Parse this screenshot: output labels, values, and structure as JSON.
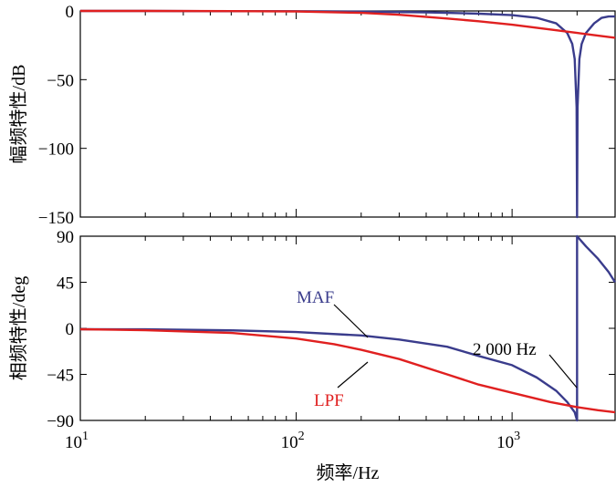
{
  "chart_data": [
    {
      "type": "line",
      "ylabel": "幅频特性/dB",
      "xscale": "log",
      "xlim": [
        10,
        3000
      ],
      "ylim": [
        -150,
        0
      ],
      "yticks": [
        "0",
        "−50",
        "−100",
        "−150"
      ],
      "ytick_values": [
        0,
        -50,
        -100,
        -150
      ],
      "series": [
        {
          "name": "MAF",
          "color": "#3a3c8c",
          "x": [
            10,
            20,
            50,
            100,
            200,
            400,
            700,
            1000,
            1300,
            1600,
            1800,
            1900,
            1950,
            1990,
            2000,
            2010,
            2050,
            2100,
            2200,
            2400,
            2600,
            2800,
            3000
          ],
          "y": [
            0,
            0,
            -0.2,
            -0.2,
            -0.5,
            -1,
            -2,
            -3,
            -5,
            -9,
            -16,
            -24,
            -35,
            -70,
            -150,
            -70,
            -35,
            -24,
            -16,
            -9,
            -5,
            -4,
            -4
          ]
        },
        {
          "name": "LPF",
          "color": "#e02020",
          "x": [
            10,
            20,
            50,
            100,
            200,
            300,
            500,
            700,
            1000,
            1500,
            2000,
            2500,
            3000
          ],
          "y": [
            0,
            0,
            -0.1,
            -0.4,
            -1.4,
            -2.8,
            -5.5,
            -7.5,
            -10,
            -13.5,
            -16,
            -18,
            -19.5
          ]
        }
      ]
    },
    {
      "type": "line",
      "xlabel": "频率/Hz",
      "ylabel": "相频特性/deg",
      "xscale": "log",
      "xlim": [
        10,
        3000
      ],
      "ylim": [
        -90,
        90
      ],
      "yticks": [
        "90",
        "45",
        "0",
        "−45",
        "−90"
      ],
      "ytick_values": [
        90,
        45,
        0,
        -45,
        -90
      ],
      "xticks": [
        10,
        100,
        1000
      ],
      "xtick_base": "10",
      "xtick_exponents": [
        "1",
        "2",
        "3"
      ],
      "series": [
        {
          "name": "MAF",
          "color": "#3a3c8c",
          "x": [
            10,
            20,
            50,
            100,
            200,
            300,
            500,
            700,
            1000,
            1300,
            1600,
            1800,
            1950,
            2000,
            2000.01,
            2200,
            2500,
            2800,
            3000
          ],
          "y": [
            -0.9,
            -1,
            -2,
            -3.6,
            -7,
            -11,
            -18,
            -27,
            -36,
            -48,
            -61,
            -72,
            -82,
            -90,
            90,
            80,
            68,
            55,
            45
          ]
        },
        {
          "name": "LPF",
          "color": "#e02020",
          "x": [
            10,
            20,
            50,
            100,
            150,
            200,
            300,
            500,
            700,
            1000,
            1500,
            2000,
            2500,
            3000
          ],
          "y": [
            -0.9,
            -1.8,
            -4.5,
            -10,
            -15.5,
            -21,
            -30,
            -45,
            -55,
            -63,
            -72,
            -77,
            -80,
            -82
          ]
        }
      ],
      "annotations": [
        {
          "text": "MAF",
          "color": "#3a3c8c"
        },
        {
          "text": "LPF",
          "color": "#e02020"
        },
        {
          "text": "2 000 Hz",
          "color": "#000000"
        }
      ]
    }
  ]
}
